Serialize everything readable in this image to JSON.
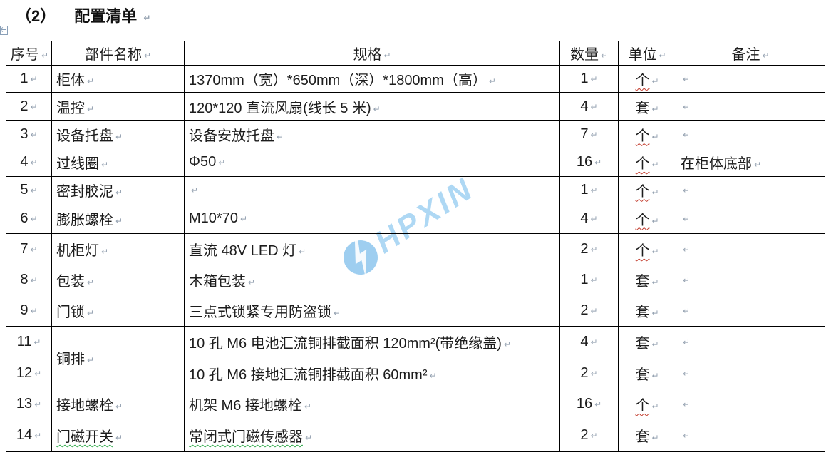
{
  "title": {
    "index": "（2）",
    "text": "配置清单"
  },
  "marks": {
    "paragraph": "↵"
  },
  "watermark": {
    "text": "HPXIN"
  },
  "colors": {
    "watermark_blue": "#a6d4f3",
    "watermark_circle": "#93c9ee",
    "squiggle_red": "#c23a2b",
    "squiggle_green": "#2faa4a",
    "border_black": "#000000"
  },
  "table": {
    "headers": [
      "序号",
      "部件名称",
      "规格",
      "数量",
      "单位",
      "备注"
    ],
    "rows": [
      {
        "no": "1",
        "name": "柜体",
        "spec": "1370mm（宽）*650mm（深）*1800mm（高）",
        "qty": "1",
        "unit": "个",
        "note": ""
      },
      {
        "no": "2",
        "name": "温控",
        "spec": "120*120 直流风扇(线长 5 米)",
        "qty": "4",
        "unit": "套",
        "note": ""
      },
      {
        "no": "3",
        "name": "设备托盘",
        "spec": "设备安放托盘",
        "qty": "7",
        "unit": "个",
        "note": ""
      },
      {
        "no": "4",
        "name": "过线圈",
        "spec": "Φ50",
        "qty": "16",
        "unit": "个",
        "note": "在柜体底部"
      },
      {
        "no": "5",
        "name": "密封胶泥",
        "spec": "",
        "qty": "1",
        "unit": "个",
        "note": ""
      },
      {
        "no": "6",
        "name": "膨胀螺栓",
        "spec": "M10*70",
        "qty": "4",
        "unit": "个",
        "note": ""
      },
      {
        "no": "7",
        "name": "机柜灯",
        "spec": "直流 48V LED 灯",
        "qty": "2",
        "unit": "个",
        "note": ""
      },
      {
        "no": "8",
        "name": "包装",
        "spec": "木箱包装",
        "qty": "1",
        "unit": "套",
        "note": ""
      },
      {
        "no": "9",
        "name": "门锁",
        "spec": "三点式锁紧专用防盗锁",
        "qty": "2",
        "unit": "套",
        "note": ""
      },
      {
        "no": "11",
        "name": "铜排",
        "spec": "10 孔 M6 电池汇流铜排截面积 120mm²(带绝缘盖)",
        "qty": "4",
        "unit": "套",
        "note": ""
      },
      {
        "no": "12",
        "name": "",
        "spec": "10 孔 M6 接地汇流铜排截面积 60mm²",
        "qty": "2",
        "unit": "套",
        "note": ""
      },
      {
        "no": "13",
        "name": "接地螺栓",
        "spec": "机架 M6 接地螺栓",
        "qty": "16",
        "unit": "个",
        "note": ""
      },
      {
        "no": "14",
        "name": "门磁开关",
        "spec": "常闭式门磁传感器",
        "qty": "2",
        "unit": "套",
        "note": ""
      }
    ]
  }
}
